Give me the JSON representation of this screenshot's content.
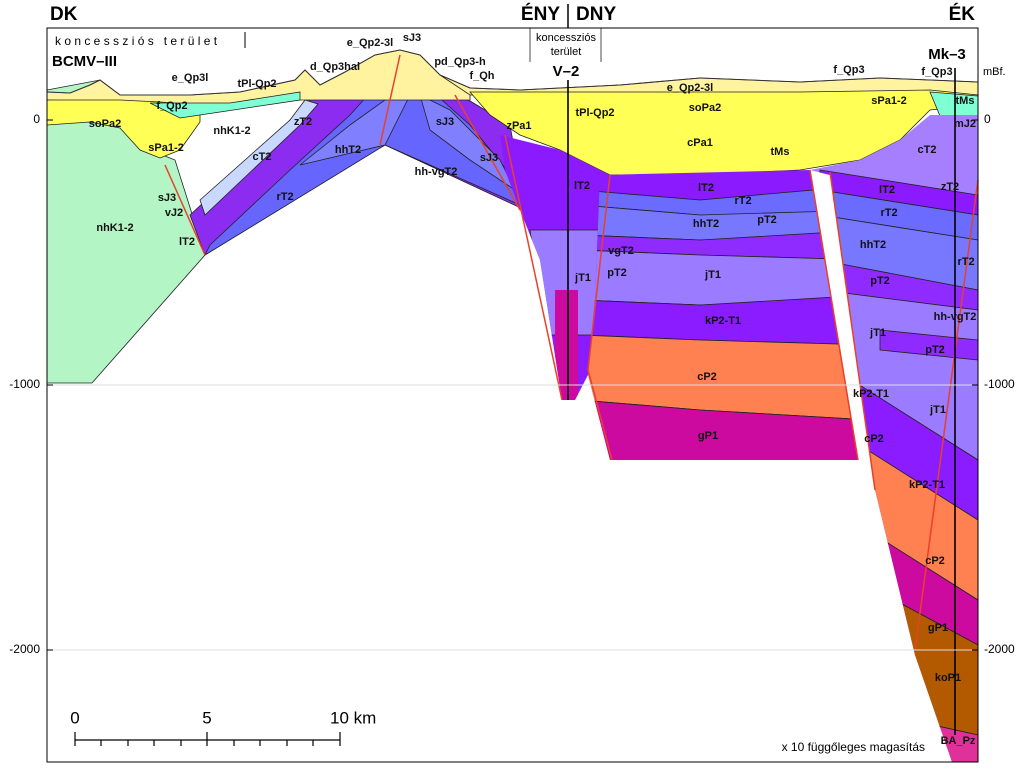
{
  "header": {
    "left": "DK",
    "middle_left": "ÉNY",
    "middle_right": "DNY",
    "right": "ÉK"
  },
  "concession_left": "k o n c e s s z i ó s   t e r ü l e t",
  "section_left": "BCMV–III",
  "concession_middle": [
    "koncessziós",
    "terület"
  ],
  "well_middle": "V–2",
  "well_right": "Mk–3",
  "depth_axis": {
    "unit": "mBf.",
    "ticks": [
      0,
      -1000,
      -2000
    ]
  },
  "scale_bar": {
    "labels": [
      "0",
      "5",
      "10 km"
    ]
  },
  "exaggeration_note": "x 10 függőleges magasítás",
  "formations": [
    "e_Qp3l",
    "tPl-Qp2",
    "f_Qp2",
    "soPa2",
    "nhK1-2",
    "sPa1-2",
    "cT2",
    "zT2",
    "hhT2",
    "rT2",
    "sJ3",
    "vJ2",
    "lT2",
    "nhK1-2",
    "d_Qp3hal",
    "e_Qp2-3l",
    "sJ3",
    "pd_Qp3-h",
    "f_Qh",
    "sJ3",
    "sJ3",
    "hh-vgT2",
    "zPa1",
    "tPl-Qp2",
    "lT2",
    "e_Qp2-3l",
    "soPa2",
    "cPa1",
    "tMs",
    "lT2",
    "rT2",
    "hhT2",
    "pT2",
    "vgT2",
    "pT2",
    "jT1",
    "jT1",
    "kP2-T1",
    "cP2",
    "gP1",
    "f_Qp3",
    "f_Qp3",
    "sPa1-2",
    "tMs",
    "mJ2",
    "cT2",
    "lT2",
    "zT2",
    "rT2",
    "hhT2",
    "rT2",
    "pT2",
    "hh-vgT2",
    "jT1",
    "pT2",
    "kP2-T1",
    "jT1",
    "cP2",
    "kP2-T1",
    "cP2",
    "gP1",
    "koP1",
    "BA_Pz"
  ]
}
